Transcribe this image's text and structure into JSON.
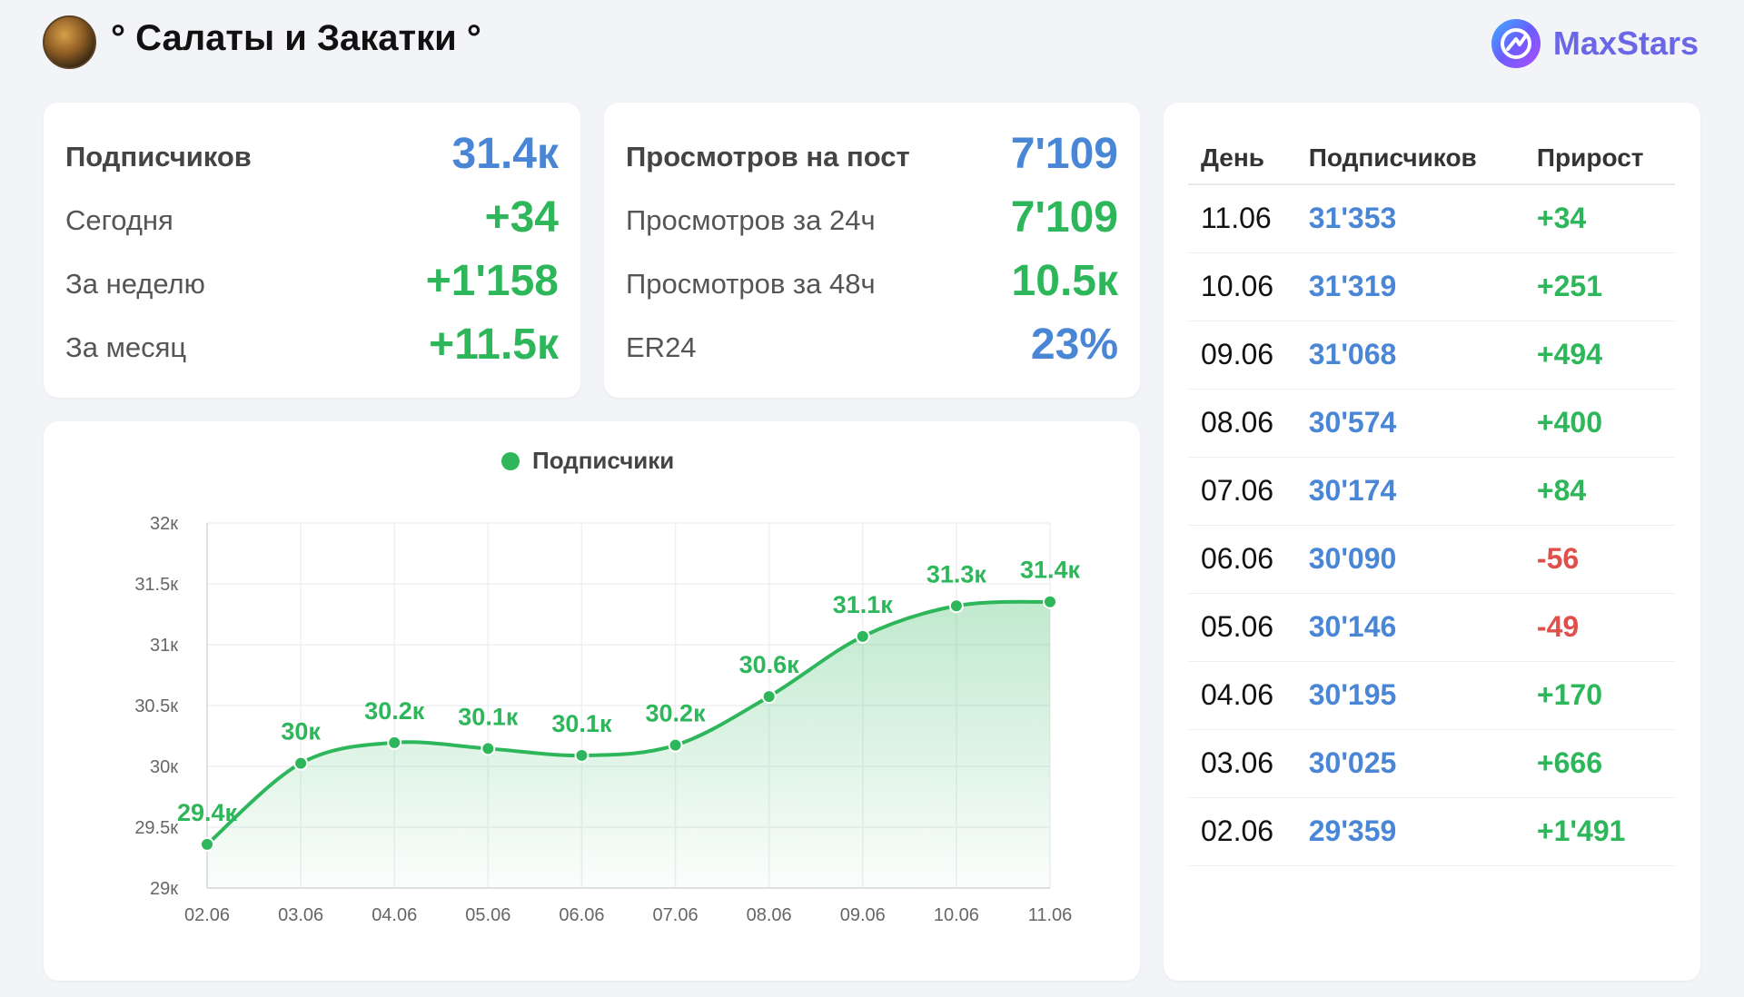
{
  "header": {
    "channel_title": "° Салаты и Закатки °",
    "avatar_icon": "channel-avatar",
    "brand_name": "MaxStars",
    "brand_icon": "maxstars-logo-icon"
  },
  "colors": {
    "blue": "#4a86d6",
    "green": "#2eb65b",
    "red": "#e0504a",
    "brand": "#6b66e6"
  },
  "subscribers_card": {
    "rows": [
      {
        "label": "Подписчиков",
        "value": "31.4к",
        "color": "blue"
      },
      {
        "label": "Сегодня",
        "value": "+34",
        "color": "green"
      },
      {
        "label": "За неделю",
        "value": "+1'158",
        "color": "green"
      },
      {
        "label": "За месяц",
        "value": "+11.5к",
        "color": "green"
      }
    ]
  },
  "views_card": {
    "rows": [
      {
        "label": "Просмотров на пост",
        "value": "7'109",
        "color": "blue"
      },
      {
        "label": "Просмотров за 24ч",
        "value": "7'109",
        "color": "green"
      },
      {
        "label": "Просмотров за 48ч",
        "value": "10.5к",
        "color": "green"
      },
      {
        "label": "ER24",
        "value": "23%",
        "color": "blue"
      }
    ]
  },
  "daily_table": {
    "headers": [
      "День",
      "Подписчиков",
      "Прирост"
    ],
    "rows": [
      {
        "day": "11.06",
        "subs": "31'353",
        "delta": "+34"
      },
      {
        "day": "10.06",
        "subs": "31'319",
        "delta": "+251"
      },
      {
        "day": "09.06",
        "subs": "31'068",
        "delta": "+494"
      },
      {
        "day": "08.06",
        "subs": "30'574",
        "delta": "+400"
      },
      {
        "day": "07.06",
        "subs": "30'174",
        "delta": "+84"
      },
      {
        "day": "06.06",
        "subs": "30'090",
        "delta": "-56"
      },
      {
        "day": "05.06",
        "subs": "30'146",
        "delta": "-49"
      },
      {
        "day": "04.06",
        "subs": "30'195",
        "delta": "+170"
      },
      {
        "day": "03.06",
        "subs": "30'025",
        "delta": "+666"
      },
      {
        "day": "02.06",
        "subs": "29'359",
        "delta": "+1'491"
      }
    ]
  },
  "chart_data": {
    "type": "area",
    "legend": [
      "Подписчики"
    ],
    "legend_position": "top-center",
    "categories": [
      "02.06",
      "03.06",
      "04.06",
      "05.06",
      "06.06",
      "07.06",
      "08.06",
      "09.06",
      "10.06",
      "11.06"
    ],
    "series": [
      {
        "name": "Подписчики",
        "values": [
          29359,
          30025,
          30195,
          30146,
          30090,
          30174,
          30574,
          31068,
          31319,
          31353
        ],
        "labels": [
          "29.4к",
          "30к",
          "30.2к",
          "30.1к",
          "30.1к",
          "30.2к",
          "30.6к",
          "31.1к",
          "31.3к",
          "31.4к"
        ]
      }
    ],
    "ylim": [
      29000,
      32000
    ],
    "yticks": [
      29000,
      29500,
      30000,
      30500,
      31000,
      31500,
      32000
    ],
    "ytick_labels": [
      "29к",
      "29.5к",
      "30к",
      "30.5к",
      "31к",
      "31.5к",
      "32к"
    ],
    "grid": true,
    "line_color": "#2eb65b"
  }
}
